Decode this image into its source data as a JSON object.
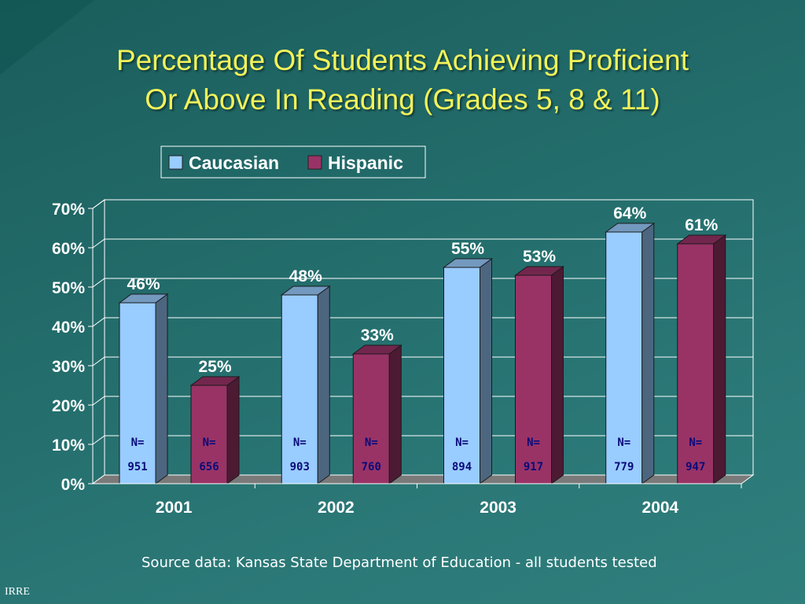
{
  "slide": {
    "title_line1": "Percentage Of Students Achieving Proficient",
    "title_line2": "Or Above In Reading (Grades 5, 8 & 11)",
    "source": "Source data: Kansas State Department of Education - all students tested",
    "footer": "IRRE"
  },
  "chart_data": {
    "type": "bar",
    "title": "",
    "xlabel": "",
    "ylabel": "",
    "categories": [
      "2001",
      "2002",
      "2003",
      "2004"
    ],
    "ylim": [
      0,
      70
    ],
    "yticks": [
      "0%",
      "10%",
      "20%",
      "30%",
      "40%",
      "50%",
      "60%",
      "70%"
    ],
    "grid": true,
    "legend": "top-center",
    "n_prefix": "N=",
    "series": [
      {
        "name": "Caucasian",
        "color": "#99ccff",
        "values": [
          46,
          48,
          55,
          64
        ],
        "labels": [
          "46%",
          "48%",
          "55%",
          "64%"
        ],
        "n": [
          "951",
          "903",
          "894",
          "779"
        ]
      },
      {
        "name": "Hispanic",
        "color": "#993366",
        "values": [
          25,
          33,
          53,
          61
        ],
        "labels": [
          "25%",
          "33%",
          "53%",
          "61%"
        ],
        "n": [
          "656",
          "760",
          "917",
          "947"
        ]
      }
    ]
  }
}
